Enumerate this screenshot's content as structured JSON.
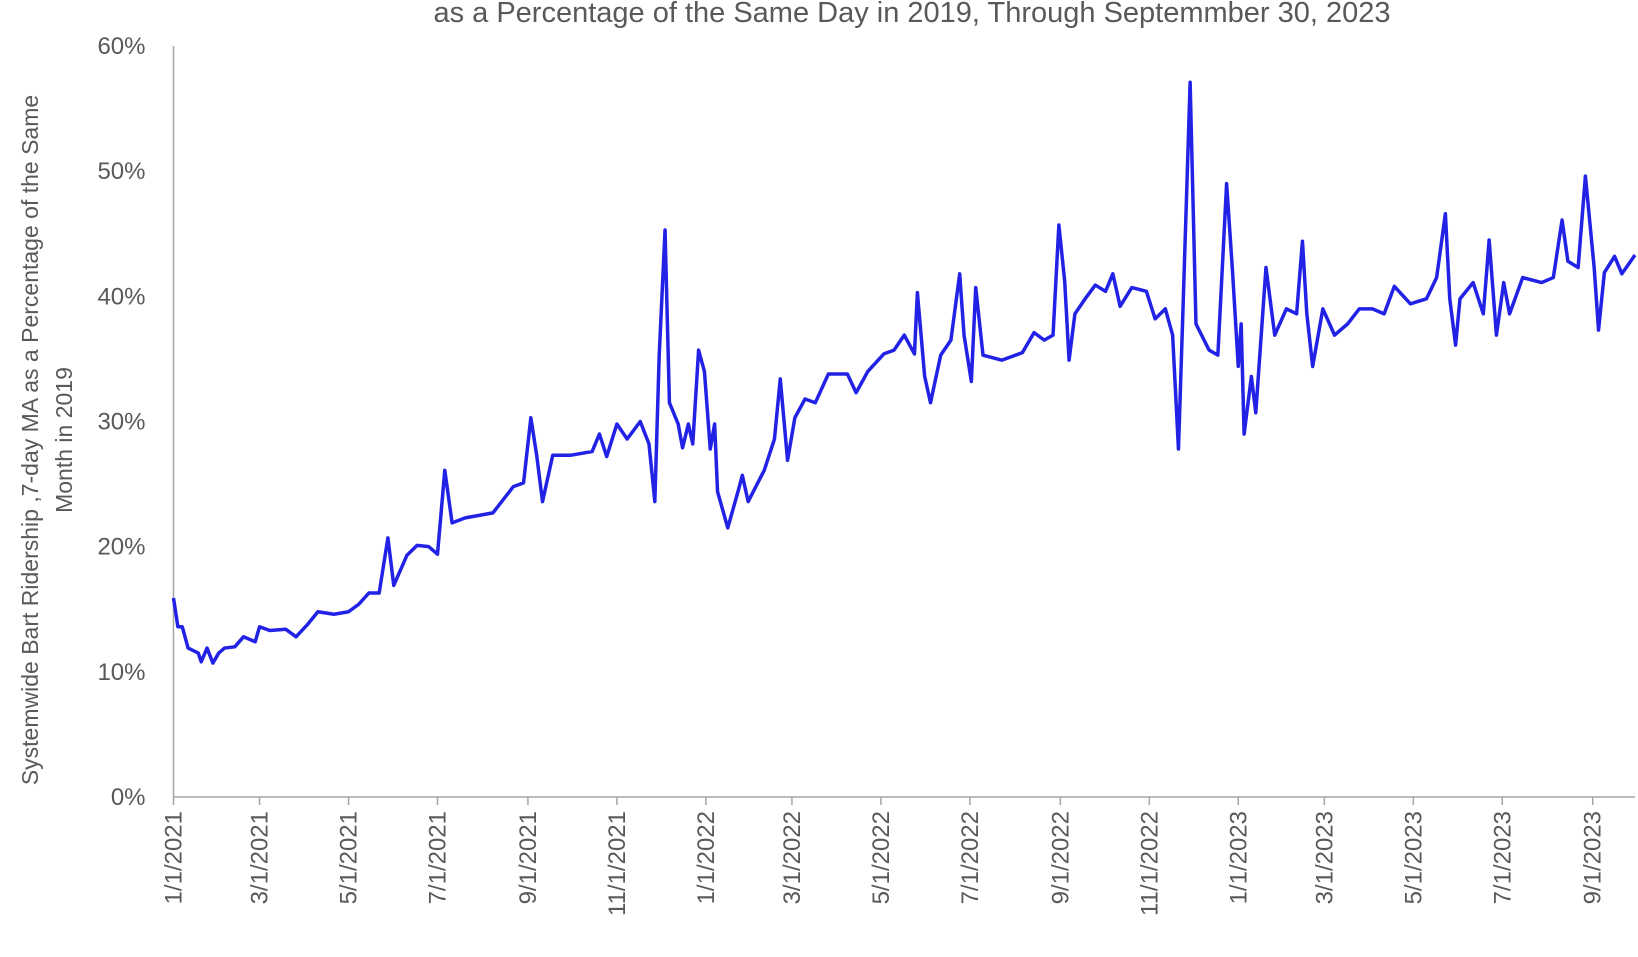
{
  "chart_data": {
    "type": "line",
    "title": "as a Percentage of the Same Day in 2019, Through Septemmber 30, 2023",
    "ylabel": [
      "Systemwide Bart Ridership ,7-day MA as a Percentage of the Same",
      "Month in 2019"
    ],
    "color": "#2222e6",
    "x": [
      "1/1/2021",
      "1/4/2021",
      "1/7/2021",
      "1/11/2021",
      "1/18/2021",
      "1/20/2021",
      "1/24/2021",
      "1/28/2021",
      "2/1/2021",
      "2/5/2021",
      "2/12/2021",
      "2/18/2021",
      "2/26/2021",
      "3/1/2021",
      "3/8/2021",
      "3/19/2021",
      "3/26/2021",
      "4/3/2021",
      "4/10/2021",
      "4/21/2021",
      "5/1/2021",
      "5/8/2021",
      "5/15/2021",
      "5/22/2021",
      "5/28/2021",
      "6/1/2021",
      "6/10/2021",
      "6/17/2021",
      "6/25/2021",
      "7/1/2021",
      "7/6/2021",
      "7/11/2021",
      "7/20/2021",
      "8/8/2021",
      "8/22/2021",
      "8/29/2021",
      "9/3/2021",
      "9/7/2021",
      "9/11/2021",
      "9/18/2021",
      "9/30/2021",
      "10/15/2021",
      "10/20/2021",
      "10/25/2021",
      "11/1/2021",
      "11/8/2021",
      "11/17/2021",
      "11/23/2021",
      "11/27/2021",
      "11/30/2021",
      "12/4/2021",
      "12/7/2021",
      "12/13/2021",
      "12/16/2021",
      "12/20/2021",
      "12/23/2021",
      "12/27/2021",
      "12/31/2021",
      "1/4/2022",
      "1/7/2022",
      "1/9/2022",
      "1/16/2022",
      "1/23/2022",
      "1/26/2022",
      "1/30/2022",
      "2/10/2022",
      "2/17/2022",
      "2/21/2022",
      "2/26/2022",
      "3/3/2022",
      "3/10/2022",
      "3/17/2022",
      "3/26/2022",
      "4/8/2022",
      "4/14/2022",
      "4/22/2022",
      "5/3/2022",
      "5/10/2022",
      "5/17/2022",
      "5/24/2022",
      "5/26/2022",
      "5/31/2022",
      "6/4/2022",
      "6/11/2022",
      "6/18/2022",
      "6/24/2022",
      "6/27/2022",
      "7/2/2022",
      "7/5/2022",
      "7/10/2022",
      "7/23/2022",
      "8/6/2022",
      "8/14/2022",
      "8/21/2022",
      "8/27/2022",
      "8/31/2022",
      "9/4/2022",
      "9/7/2022",
      "9/11/2022",
      "9/18/2022",
      "9/25/2022",
      "10/2/2022",
      "10/7/2022",
      "10/12/2022",
      "10/20/2022",
      "10/30/2022",
      "11/5/2022",
      "11/12/2022",
      "11/17/2022",
      "11/21/2022",
      "11/24/2022",
      "11/29/2022",
      "12/3/2022",
      "12/12/2022",
      "12/18/2022",
      "12/24/2022",
      "12/28/2022",
      "1/1/2023",
      "1/3/2023",
      "1/5/2023",
      "1/10/2023",
      "1/13/2023",
      "1/18/2023",
      "1/20/2023",
      "1/26/2023",
      "2/3/2023",
      "2/10/2023",
      "2/14/2023",
      "2/17/2023",
      "2/21/2023",
      "2/28/2023",
      "3/8/2023",
      "3/17/2023",
      "3/25/2023",
      "4/3/2023",
      "4/11/2023",
      "4/18/2023",
      "4/29/2023",
      "5/10/2023",
      "5/17/2023",
      "5/23/2023",
      "5/26/2023",
      "5/30/2023",
      "6/2/2023",
      "6/11/2023",
      "6/18/2023",
      "6/22/2023",
      "6/27/2023",
      "7/2/2023",
      "7/6/2023",
      "7/15/2023",
      "7/28/2023",
      "8/5/2023",
      "8/11/2023",
      "8/15/2023",
      "8/22/2023",
      "8/27/2023",
      "9/2/2023",
      "9/5/2023",
      "9/9/2023",
      "9/16/2023",
      "9/21/2023",
      "9/30/2023"
    ],
    "values": [
      15.9,
      13.6,
      13.6,
      11.9,
      11.5,
      10.8,
      11.9,
      10.7,
      11.5,
      11.9,
      12,
      12.8,
      12.4,
      13.6,
      13.3,
      13.4,
      12.8,
      13.8,
      14.8,
      14.6,
      14.8,
      15.4,
      16.3,
      16.3,
      20.7,
      16.9,
      19.3,
      20.1,
      20,
      19.4,
      26.1,
      21.9,
      22.3,
      22.7,
      24.8,
      25.1,
      30.3,
      27.3,
      23.6,
      27.3,
      27.3,
      27.6,
      29,
      27.2,
      29.8,
      28.6,
      30,
      28.2,
      23.6,
      35.3,
      45.3,
      31.5,
      29.8,
      27.9,
      29.8,
      28.2,
      35.7,
      34,
      27.8,
      29.8,
      24.4,
      21.5,
      24.4,
      25.7,
      23.6,
      26.1,
      28.6,
      33.4,
      26.9,
      30.3,
      31.8,
      31.5,
      33.8,
      33.8,
      32.3,
      34,
      35.4,
      35.7,
      36.9,
      35.4,
      40.3,
      33.6,
      31.5,
      35.3,
      36.5,
      41.8,
      36.9,
      33.2,
      40.7,
      35.3,
      34.9,
      35.5,
      37.1,
      36.5,
      36.9,
      45.7,
      41.2,
      34.9,
      38.6,
      39.8,
      40.9,
      40.4,
      41.8,
      39.2,
      40.7,
      40.4,
      38.2,
      39,
      36.9,
      27.8,
      38.6,
      57.1,
      37.8,
      35.7,
      35.3,
      49,
      42.1,
      34.4,
      37.8,
      29,
      33.6,
      30.7,
      39,
      42.3,
      36.9,
      39,
      38.6,
      44.4,
      38.6,
      34.4,
      39,
      36.9,
      37.8,
      39,
      39,
      38.6,
      40.8,
      39.4,
      39.8,
      41.5,
      46.6,
      39.8,
      36.1,
      39.8,
      41.1,
      38.6,
      44.5,
      36.9,
      41.1,
      38.6,
      41.5,
      41.1,
      41.5,
      46.1,
      42.8,
      42.3,
      49.6,
      42.3,
      37.3,
      41.9,
      43.2,
      41.8,
      43.3
    ],
    "xlim": [
      "1/1/2021",
      "9/30/2023"
    ],
    "xticks": [
      "1/1/2021",
      "3/1/2021",
      "5/1/2021",
      "7/1/2021",
      "9/1/2021",
      "11/1/2021",
      "1/1/2022",
      "3/1/2022",
      "5/1/2022",
      "7/1/2022",
      "9/1/2022",
      "11/1/2022",
      "1/1/2023",
      "3/1/2023",
      "5/1/2023",
      "7/1/2023",
      "9/1/2023"
    ],
    "ylim": [
      0,
      60
    ],
    "yticks": [
      {
        "value": 0,
        "label": "0%"
      },
      {
        "value": 10,
        "label": "10%"
      },
      {
        "value": 20,
        "label": "20%"
      },
      {
        "value": 30,
        "label": "30%"
      },
      {
        "value": 40,
        "label": "40%"
      },
      {
        "value": 50,
        "label": "50%"
      },
      {
        "value": 60,
        "label": "60%"
      }
    ],
    "grid": false
  }
}
